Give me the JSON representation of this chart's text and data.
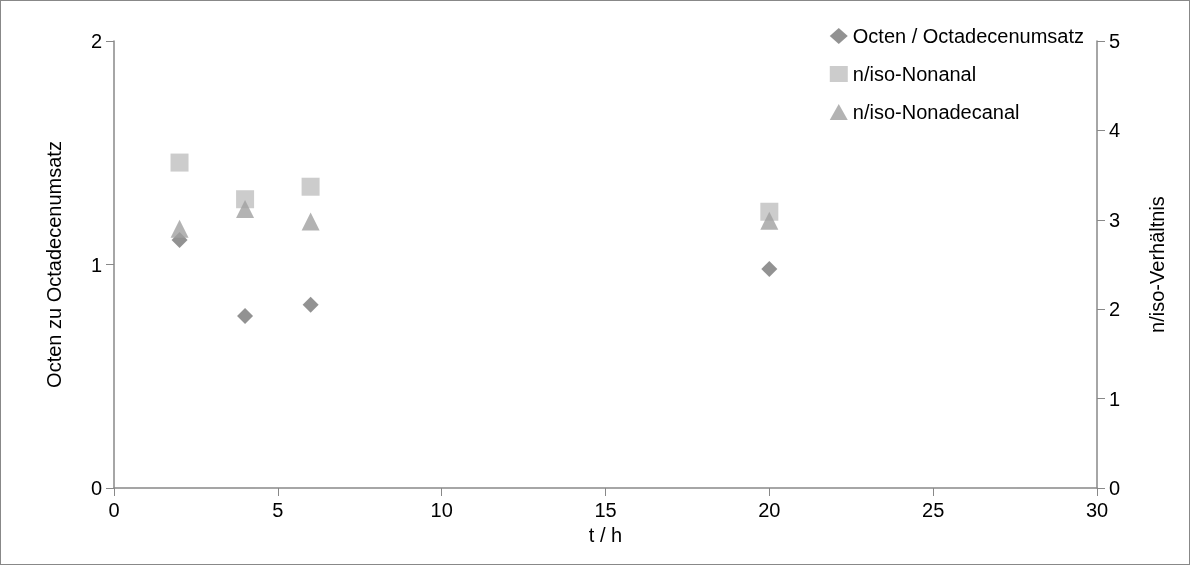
{
  "chart_data": {
    "type": "scatter",
    "xlabel": "t / h",
    "ylabel": "Octen zu Octadecenumsatz",
    "y2label": "n/iso-Verhältnis",
    "xlim": [
      0,
      30
    ],
    "xticks": [
      0,
      5,
      10,
      15,
      20,
      25,
      30
    ],
    "ylim": [
      0,
      2
    ],
    "yticks": [
      0,
      1,
      2
    ],
    "y2lim": [
      0,
      5
    ],
    "y2ticks": [
      0,
      1,
      2,
      3,
      4,
      5
    ],
    "grid": false,
    "legend": "top right",
    "series": [
      {
        "name": "Octen / Octadecenumsatz",
        "color": "#777777",
        "marker": "diamond",
        "x": [
          2,
          4,
          6,
          20
        ],
        "values": [
          1.11,
          0.77,
          0.82,
          0.98
        ]
      },
      {
        "name": "n/iso-Nonanal",
        "color": "#bfbfbf",
        "marker": "square",
        "axis": "y2",
        "x": [
          2,
          4,
          6,
          20
        ],
        "values": [
          3.64,
          3.23,
          3.37,
          3.09
        ]
      },
      {
        "name": "n/iso-Nonadecanal",
        "color": "#a0a0a0",
        "marker": "triangle",
        "axis": "y2",
        "x": [
          2,
          4,
          6,
          20
        ],
        "values": [
          2.9,
          3.12,
          2.98,
          2.99
        ]
      }
    ]
  }
}
